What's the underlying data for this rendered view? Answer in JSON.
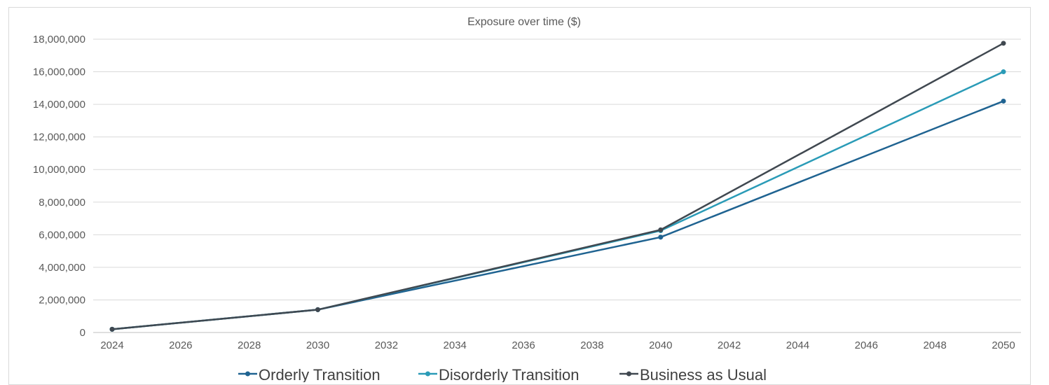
{
  "chart_data": {
    "type": "line",
    "title": "Exposure over time ($)",
    "xlabel": "",
    "ylabel": "",
    "x_ticks": [
      2024,
      2026,
      2028,
      2030,
      2032,
      2034,
      2036,
      2038,
      2040,
      2042,
      2044,
      2046,
      2048,
      2050
    ],
    "y_ticks": [
      "0",
      "2,000,000",
      "4,000,000",
      "6,000,000",
      "8,000,000",
      "10,000,000",
      "12,000,000",
      "14,000,000",
      "16,000,000",
      "18,000,000"
    ],
    "xlim": [
      2024,
      2050
    ],
    "ylim": [
      0,
      18000000
    ],
    "grid": true,
    "legend_position": "bottom",
    "x": [
      2024,
      2030,
      2040,
      2050
    ],
    "series": [
      {
        "name": "Orderly Transition",
        "color": "#1f6391",
        "values": [
          200000,
          1400000,
          5850000,
          14200000
        ]
      },
      {
        "name": "Disorderly Transition",
        "color": "#2a9bb7",
        "values": [
          200000,
          1400000,
          6250000,
          16000000
        ]
      },
      {
        "name": "Business as Usual",
        "color": "#404850",
        "values": [
          200000,
          1400000,
          6300000,
          17750000
        ]
      }
    ]
  }
}
